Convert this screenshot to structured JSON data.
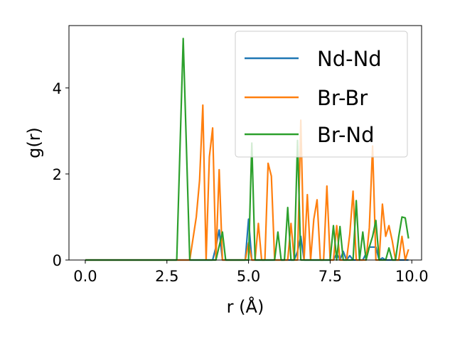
{
  "chart_data": {
    "type": "line",
    "xlabel": "r (Å)",
    "ylabel": "g(r)",
    "xlim": [
      -0.5,
      10.3
    ],
    "ylim": [
      0,
      5.45
    ],
    "xticks": [
      0.0,
      2.5,
      5.0,
      7.5,
      10.0
    ],
    "xtick_labels": [
      "0.0",
      "2.5",
      "5.0",
      "7.5",
      "10.0"
    ],
    "yticks": [
      0,
      2,
      4
    ],
    "ytick_labels": [
      "0",
      "2",
      "4"
    ],
    "grid": false,
    "legend_position": "top-right",
    "series": [
      {
        "name": "Nd-Nd",
        "color": "#1f77b4",
        "x": [
          0.0,
          3.9,
          4.0,
          4.1,
          4.2,
          4.9,
          5.0,
          5.1,
          6.4,
          6.5,
          6.6,
          6.7,
          7.6,
          7.7,
          7.8,
          7.9,
          8.0,
          8.1,
          8.2,
          8.3,
          8.5,
          8.6,
          8.7,
          8.8,
          8.9,
          9.0,
          9.1,
          9.2,
          9.3,
          9.9
        ],
        "y": [
          0.0,
          0.0,
          0.3,
          0.7,
          0.0,
          0.0,
          0.95,
          0.0,
          0.0,
          0.2,
          0.55,
          0.0,
          0.0,
          0.15,
          0.0,
          0.2,
          0.0,
          0.1,
          0.0,
          0.0,
          0.0,
          0.15,
          0.3,
          0.3,
          0.3,
          0.0,
          0.05,
          0.0,
          0.0,
          0.0
        ]
      },
      {
        "name": "Br-Br",
        "color": "#ff7f0e",
        "x": [
          0.0,
          3.2,
          3.4,
          3.5,
          3.6,
          3.7,
          3.8,
          3.9,
          4.0,
          4.1,
          4.2,
          4.9,
          5.0,
          5.1,
          5.2,
          5.3,
          5.4,
          5.5,
          5.6,
          5.7,
          5.8,
          5.9,
          6.0,
          6.1,
          6.2,
          6.3,
          6.4,
          6.5,
          6.6,
          6.7,
          6.8,
          6.9,
          7.0,
          7.1,
          7.2,
          7.3,
          7.4,
          7.5,
          7.6,
          7.7,
          7.8,
          8.0,
          8.1,
          8.2,
          8.3,
          8.4,
          8.5,
          8.6,
          8.7,
          8.8,
          8.9,
          9.0,
          9.1,
          9.2,
          9.3,
          9.4,
          9.5,
          9.6,
          9.7,
          9.8,
          9.9
        ],
        "y": [
          0.0,
          0.0,
          1.0,
          1.85,
          3.6,
          0.0,
          2.4,
          3.07,
          0.0,
          2.1,
          0.0,
          0.0,
          0.4,
          0.0,
          0.0,
          0.85,
          0.0,
          0.0,
          2.25,
          1.95,
          0.0,
          0.0,
          0.0,
          0.0,
          0.0,
          0.85,
          0.0,
          0.0,
          3.25,
          0.0,
          1.52,
          0.0,
          0.95,
          1.4,
          0.0,
          0.0,
          1.72,
          0.0,
          0.0,
          0.8,
          0.0,
          0.0,
          0.6,
          1.6,
          0.0,
          0.0,
          0.0,
          0.0,
          0.75,
          2.65,
          0.0,
          0.0,
          1.3,
          0.55,
          0.8,
          0.45,
          0.0,
          0.0,
          0.55,
          0.0,
          0.25
        ]
      },
      {
        "name": "Br-Nd",
        "color": "#2ca02c",
        "x": [
          0.0,
          2.8,
          3.0,
          3.2,
          4.0,
          4.2,
          4.3,
          4.9,
          5.0,
          5.1,
          5.2,
          5.7,
          5.8,
          5.9,
          6.0,
          6.1,
          6.2,
          6.3,
          6.4,
          6.5,
          6.6,
          6.7,
          7.4,
          7.5,
          7.6,
          7.7,
          7.8,
          7.9,
          8.0,
          8.1,
          8.2,
          8.3,
          8.4,
          8.5,
          8.6,
          8.7,
          8.8,
          8.9,
          9.0,
          9.1,
          9.2,
          9.3,
          9.4,
          9.5,
          9.6,
          9.7,
          9.8,
          9.9
        ],
        "y": [
          0.0,
          0.0,
          5.15,
          0.0,
          0.0,
          0.65,
          0.0,
          0.0,
          0.0,
          2.72,
          0.0,
          0.0,
          0.0,
          0.65,
          0.0,
          0.0,
          1.22,
          0.0,
          0.0,
          2.78,
          0.0,
          0.0,
          0.0,
          0.0,
          0.8,
          0.0,
          0.78,
          0.0,
          0.0,
          0.0,
          0.0,
          1.38,
          0.0,
          0.65,
          0.0,
          0.3,
          0.55,
          0.92,
          0.0,
          0.0,
          0.0,
          0.28,
          0.0,
          0.0,
          0.55,
          1.0,
          0.98,
          0.5
        ]
      }
    ]
  }
}
